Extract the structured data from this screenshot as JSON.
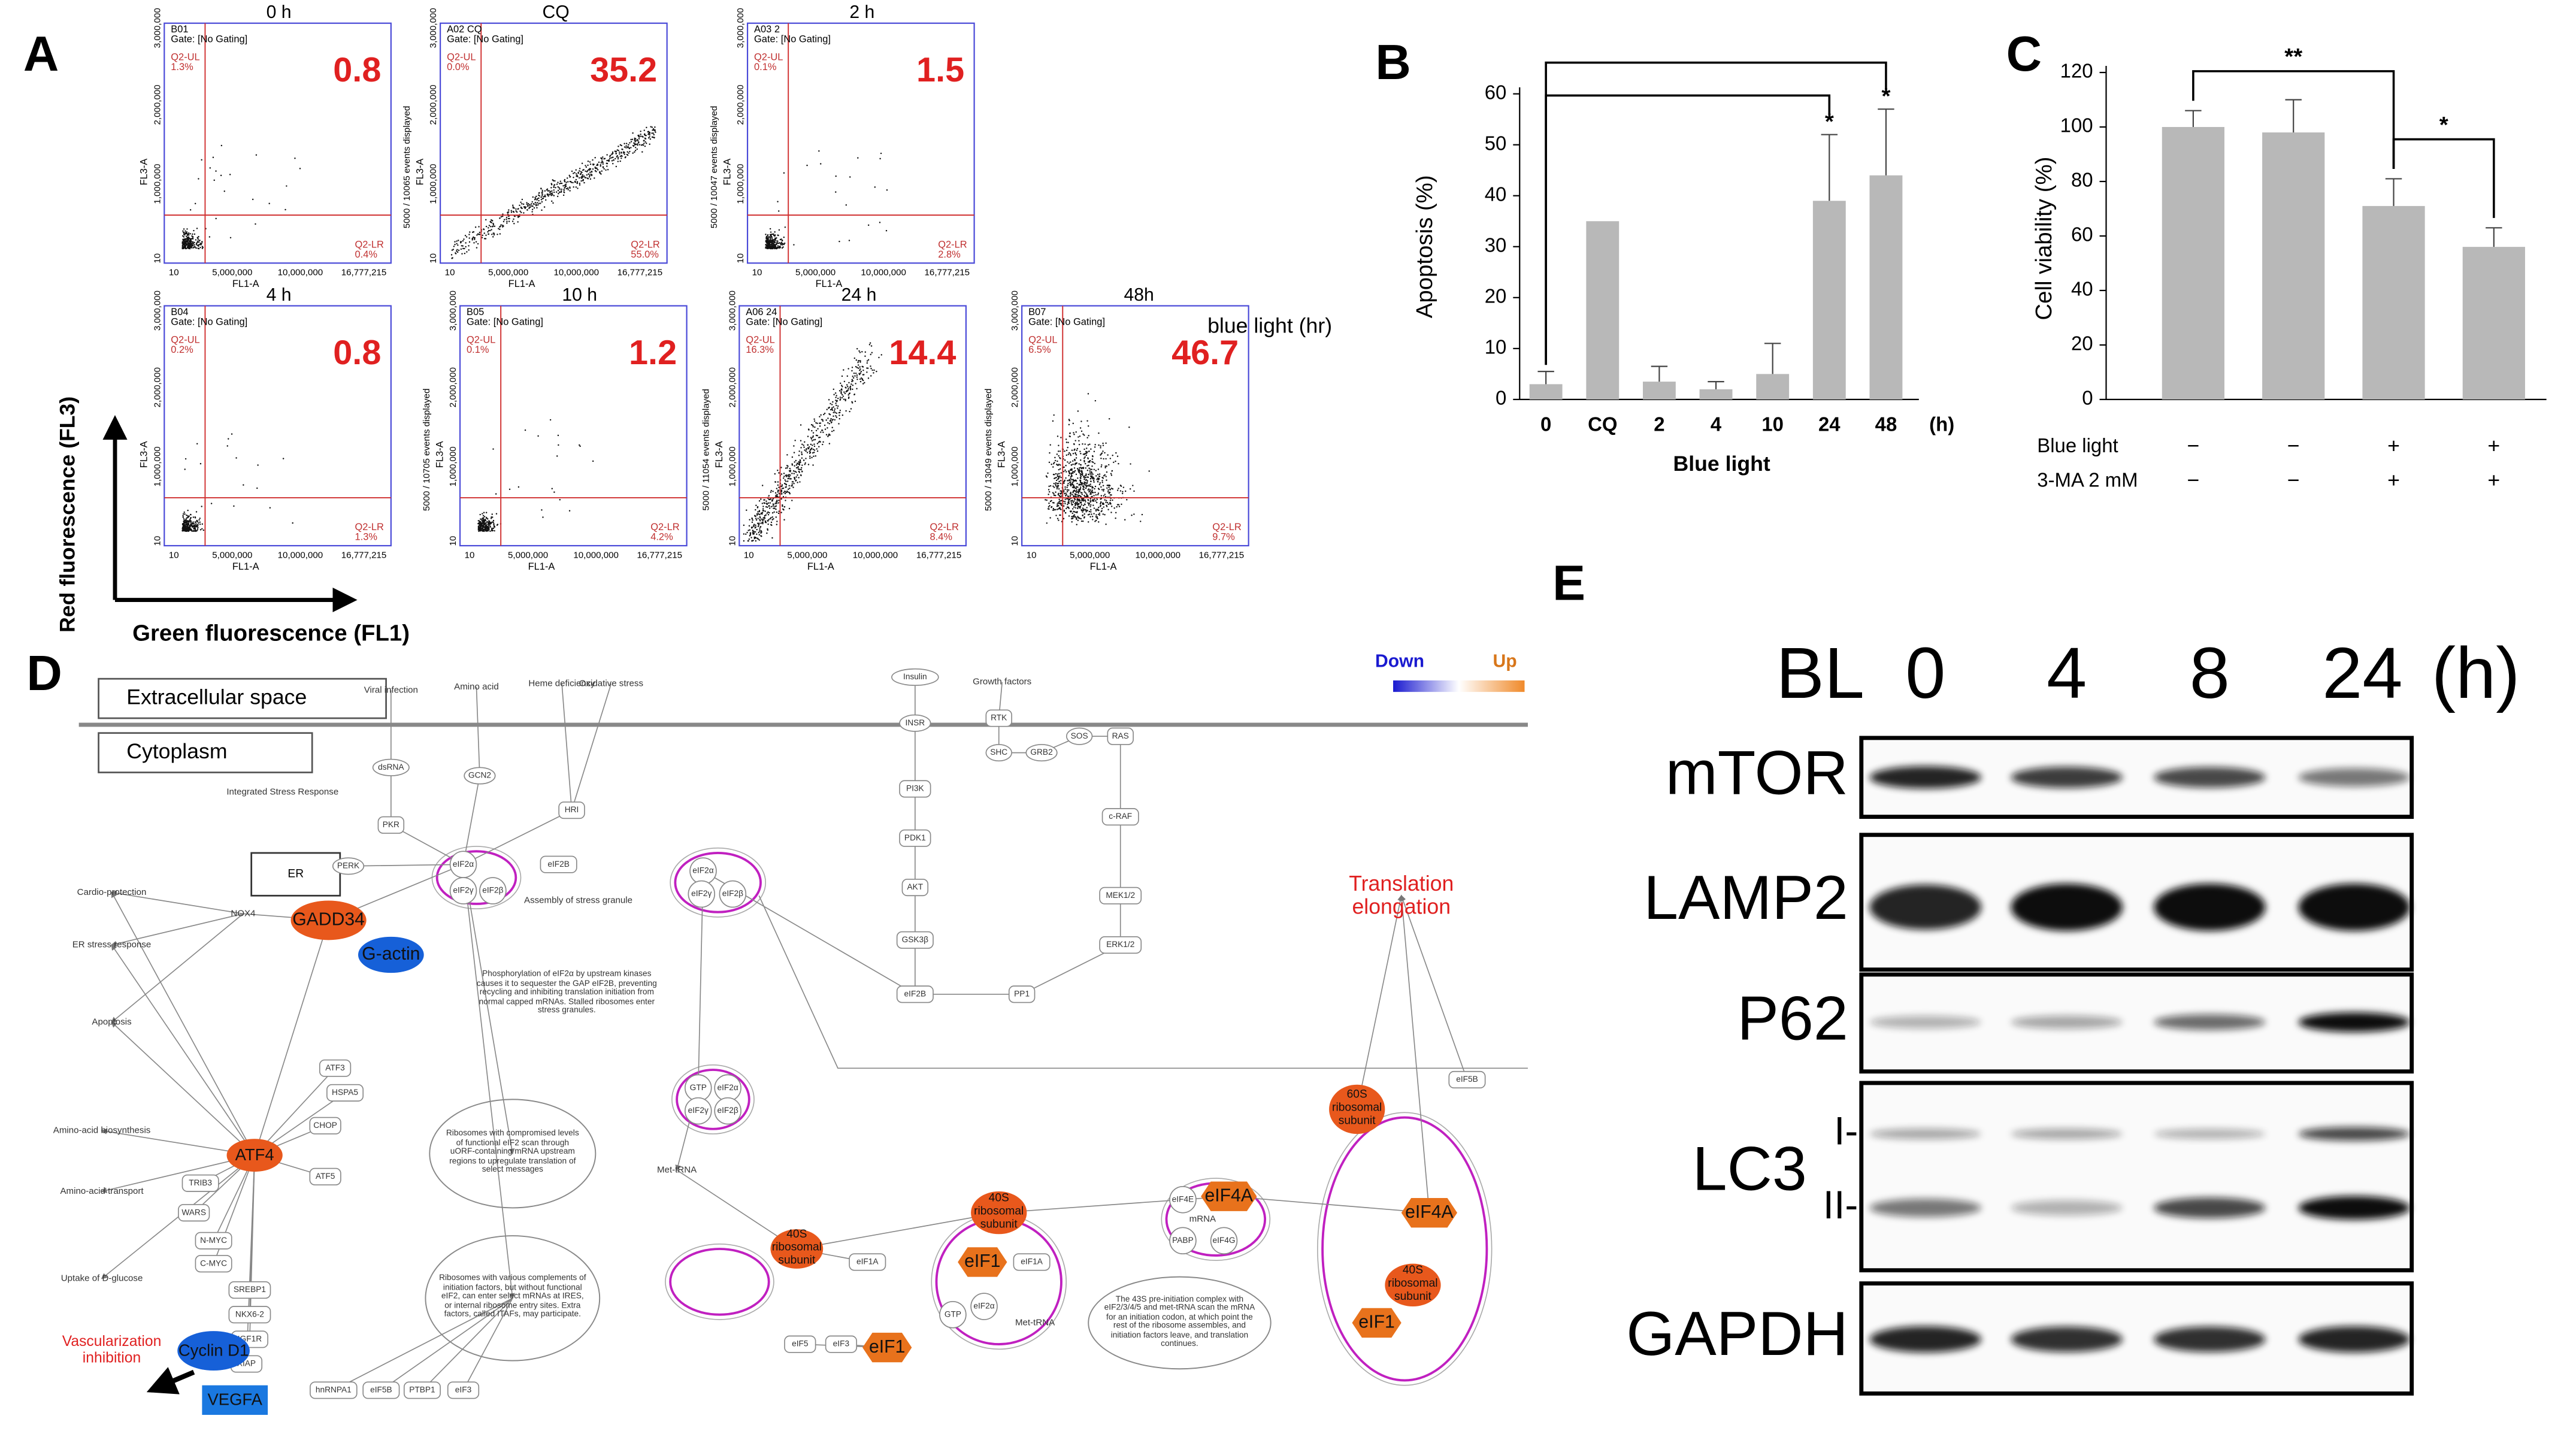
{
  "panel_labels": [
    "A",
    "B",
    "C",
    "D",
    "E"
  ],
  "flow": {
    "x_label": "FL1-A",
    "y_label": "FL3-A",
    "x_ticks": [
      "10",
      "5,000,000",
      "10,000,000",
      "16,777,215"
    ],
    "y_ticks": [
      "10",
      "1,000,000",
      "2,000,000",
      "3,000,000"
    ],
    "axis_x": "Green fluorescence (FL1)",
    "axis_y": "Red fluorescence (FL3)",
    "note": "blue light (hr)",
    "plots": [
      {
        "well": "B01",
        "gate": "Gate: [No Gating]",
        "time": "0 h",
        "value": 0.8,
        "ul": "Q2-UL",
        "ul_pct": "1.3%",
        "lr": "Q2-LR",
        "lr_pct": "0.4%"
      },
      {
        "well": "A02 CQ",
        "gate": "Gate: [No Gating]",
        "time": "CQ",
        "value": 35.2,
        "ul": "Q2-UL",
        "ul_pct": "0.0%",
        "lr": "Q2-LR",
        "lr_pct": "55.0%",
        "events": "5000 / 10065 events displayed"
      },
      {
        "well": "A03 2",
        "gate": "Gate: [No Gating]",
        "time": "2 h",
        "value": 1.5,
        "ul": "Q2-UL",
        "ul_pct": "0.1%",
        "lr": "Q2-LR",
        "lr_pct": "2.8%",
        "events": "5000 / 10047 events displayed"
      },
      {
        "well": "B04",
        "gate": "Gate: [No Gating]",
        "time": "4 h",
        "value": 0.8,
        "ul": "Q2-UL",
        "ul_pct": "0.2%",
        "lr": "Q2-LR",
        "lr_pct": "1.3%"
      },
      {
        "well": "B05",
        "gate": "Gate: [No Gating]",
        "time": "10 h",
        "value": 1.2,
        "ul": "Q2-UL",
        "ul_pct": "0.1%",
        "lr": "Q2-LR",
        "lr_pct": "4.2%",
        "events": "5000 / 10705 events displayed"
      },
      {
        "well": "A06 24",
        "gate": "Gate: [No Gating]",
        "time": "24 h",
        "value": 14.4,
        "ul": "Q2-UL",
        "ul_pct": "16.3%",
        "lr": "Q2-LR",
        "lr_pct": "8.4%",
        "events": "5000 / 11054 events displayed"
      },
      {
        "well": "B07",
        "gate": "Gate: [No Gating]",
        "time": "48h",
        "value": 46.7,
        "ul": "Q2-UL",
        "ul_pct": "6.5%",
        "lr": "Q2-LR",
        "lr_pct": "9.7%",
        "events": "5000 / 13049 events displayed"
      }
    ]
  },
  "chart_data": [
    {
      "type": "bar",
      "y_label": "Apoptosis (%)",
      "x_label": "Blue light",
      "x_unit": "(h)",
      "categories": [
        "0",
        "CQ",
        "2",
        "4",
        "10",
        "24",
        "48"
      ],
      "values": [
        3,
        35,
        3.5,
        2,
        5,
        39,
        44
      ],
      "errors": [
        2.5,
        0,
        3,
        1.5,
        6,
        13,
        13
      ],
      "color": "#b8b8b8",
      "ylim": [
        0,
        60
      ],
      "yticks": [
        0,
        10,
        20,
        30,
        40,
        50,
        60
      ],
      "significance": [
        {
          "category": "24",
          "label": "*"
        },
        {
          "category": "48",
          "label": "*"
        }
      ]
    },
    {
      "type": "bar",
      "y_label": "Cell viability (%)",
      "values": [
        100,
        98,
        71,
        56
      ],
      "errors": [
        6,
        12,
        10,
        7
      ],
      "color": "#b8b8b8",
      "ylim": [
        0,
        120
      ],
      "yticks": [
        0,
        20,
        40,
        60,
        80,
        100,
        120
      ],
      "conditions": [
        {
          "name": "Blue light",
          "signs": [
            "−",
            "−",
            "+",
            "+"
          ]
        },
        {
          "name": "3-MA 2 mM",
          "signs": [
            "−",
            "−",
            "+",
            "+"
          ]
        }
      ],
      "comparisons": [
        {
          "label": "**",
          "between": [
            0,
            2
          ]
        },
        {
          "label": "*",
          "between": [
            2,
            3
          ]
        }
      ]
    }
  ],
  "pathway": {
    "compartments": [
      "Extracellular space",
      "Cytoplasm"
    ],
    "legend": [
      "Down",
      "Up"
    ],
    "nodes": [
      "Viral infection",
      "Amino acid",
      "Heme deficiency",
      "Oxidative stress",
      "dsRNA",
      "GCN2",
      "PKR",
      "HRI",
      "Integrated Stress Response",
      "ER",
      "PERK",
      "eIF2α",
      "eIF2γ",
      "eIF2β",
      "eIF2B",
      "Assembly of stress granule",
      "GADD34",
      "G-actin",
      "NOX4",
      "Cardio-protection",
      "ER stress response",
      "Apoptosis",
      "ATF3",
      "HSPA5",
      "CHOP",
      "ATF4",
      "ATF5",
      "Amino-acid biosynthesis",
      "TRIB3",
      "Amino-acid transport",
      "WARS",
      "N-MYC",
      "C-MYC",
      "SREBP1",
      "Uptake of D-glucose",
      "NKX6-2",
      "IGF1R",
      "XIAP",
      "Cyclin D1",
      "VEGFA",
      "Vascularization inhibition",
      "hnRNPA1",
      "eIF5B",
      "PTBP1",
      "eIF3",
      "Phosphorylation of eIF2α by upstream kinases causes it to sequester the GAP eIF2B, preventing recycling and inhibiting translation initiation from normal capped mRNAs. Stalled ribosomes enter stress granules.",
      "Ribosomes with compromised levels of functional eIF2 scan through uORF-containing mRNA upstream regions to upregulate translation of select messages",
      "Ribosomes with various complements of initiation factors, but without functional eIF2, can enter select mRNAs at IRES, or internal ribosome entry sites. Extra factors, called ITAFs, may participate.",
      "Insulin",
      "Growth factors",
      "INSR",
      "RTK",
      "SHC",
      "GRB2",
      "SOS",
      "RAS",
      "PI3K",
      "PDK1",
      "AKT",
      "GSK3β",
      "c-RAF",
      "MEK1/2",
      "ERK1/2",
      "PP1",
      "eIF2B",
      "eIF2α",
      "eIF2γ",
      "eIF2β",
      "GTP",
      "eIF2α",
      "eIF2γ",
      "eIF2β",
      "Met-tRNA",
      "40S ribosomal subunit",
      "eIF1A",
      "eIF5",
      "eIF3",
      "eIF1",
      "40S ribosomal subunit",
      "eIF1",
      "eIF1A",
      "GTP",
      "eIF2α",
      "Met-tRNA",
      "eIF4A",
      "eIF4E",
      "mRNA",
      "PABP",
      "eIF4G",
      "The 43S pre-initiation complex with eIF2/3/4/5 and met-tRNA scan the mRNA for an initiation codon, at which point the rest of the ribosome assembles, and initiation factors leave, and translation continues.",
      "60S ribosomal subunit",
      "eIF5B",
      "Translation elongation",
      "eIF4A",
      "40S ribosomal subunit",
      "eIF1"
    ]
  },
  "blot": {
    "treatment": "BL",
    "lanes": [
      "0",
      "4",
      "8",
      "24"
    ],
    "unit": "(h)",
    "proteins": [
      "mTOR",
      "LAMP2",
      "P62",
      "LC3",
      "GAPDH"
    ],
    "lc3_forms": [
      "I-",
      "II-"
    ]
  }
}
